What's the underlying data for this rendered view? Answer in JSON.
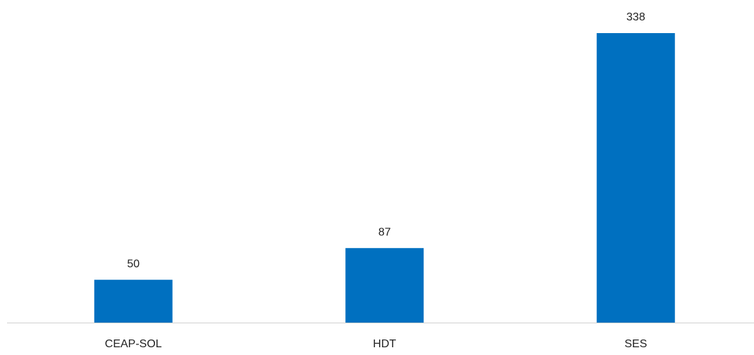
{
  "chart_data": {
    "type": "bar",
    "categories": [
      "CEAP-SOL",
      "HDT",
      "SES"
    ],
    "values": [
      50,
      87,
      338
    ],
    "color": "#0070c0"
  }
}
